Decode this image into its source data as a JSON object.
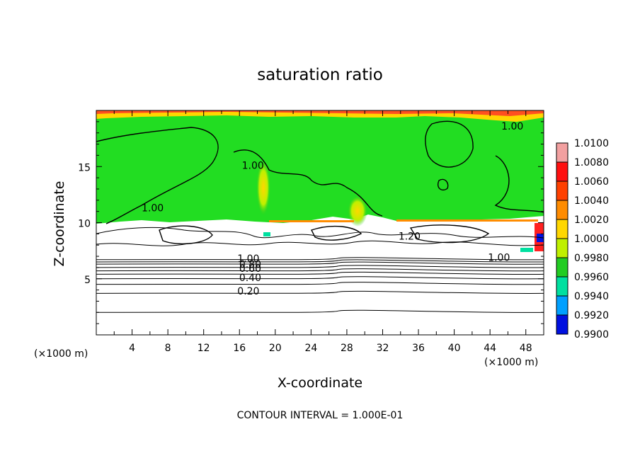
{
  "chart_data": {
    "type": "heatmap",
    "title": "saturation ratio",
    "xlabel": "X-coordinate",
    "ylabel": "Z-coordinate",
    "x_units": "(×1000 m)",
    "y_units": "(×1000 m)",
    "xlim": [
      0,
      50
    ],
    "ylim": [
      0,
      20
    ],
    "x_ticks": [
      "4",
      "8",
      "12",
      "16",
      "20",
      "24",
      "28",
      "32",
      "36",
      "40",
      "44",
      "48"
    ],
    "y_ticks": [
      "5",
      "10",
      "15"
    ],
    "colorbar": {
      "levels": [
        "1.0100",
        "1.0080",
        "1.0060",
        "1.0040",
        "1.0020",
        "1.0000",
        "0.9980",
        "0.9960",
        "0.9940",
        "0.9920",
        "0.9900"
      ],
      "colors": [
        "#f2a0a0",
        "#ff1010",
        "#ff4000",
        "#ff8c00",
        "#ffd700",
        "#bff000",
        "#22cc22",
        "#00e0a0",
        "#00a0ff",
        "#0010e0",
        "#5a00a0"
      ]
    },
    "contour_labels": [
      {
        "text": "1.00",
        "x": 46.5,
        "y": 18.3
      },
      {
        "text": "1.00",
        "x": 17.5,
        "y": 14.8
      },
      {
        "text": "1.00",
        "x": 6.3,
        "y": 11.0
      },
      {
        "text": "1.20",
        "x": 35.0,
        "y": 8.5
      },
      {
        "text": "1.00",
        "x": 45.0,
        "y": 6.6
      },
      {
        "text": "1.00",
        "x": 17.0,
        "y": 6.5
      },
      {
        "text": "0.80",
        "x": 17.2,
        "y": 6.0
      },
      {
        "text": "0.60",
        "x": 17.2,
        "y": 5.6
      },
      {
        "text": "0.40",
        "x": 17.2,
        "y": 4.8
      },
      {
        "text": "0.20",
        "x": 17.0,
        "y": 3.6
      }
    ],
    "horizontal_contours": [
      6.7,
      6.5,
      6.3,
      6.0,
      5.7,
      5.4,
      5.0,
      4.5,
      3.7,
      2.0
    ],
    "grid": false,
    "legend": "right"
  },
  "footer": {
    "contour_interval": "CONTOUR INTERVAL = 1.000E-01"
  }
}
